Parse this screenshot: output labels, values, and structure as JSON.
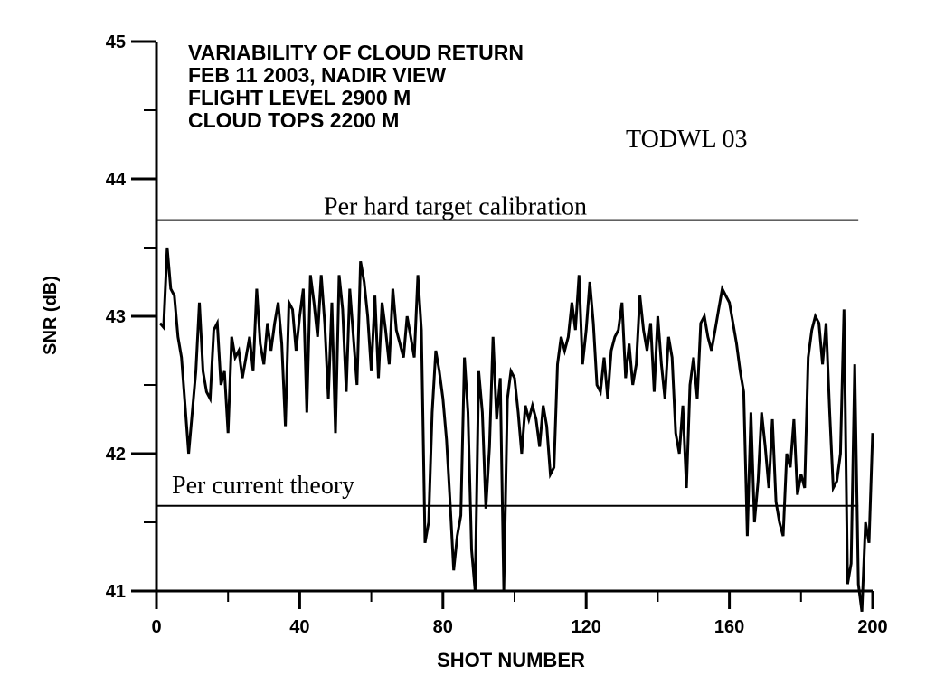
{
  "chart_data": {
    "type": "line",
    "title_lines": [
      "VARIABILITY OF CLOUD RETURN",
      "FEB 11 2003, NADIR VIEW",
      "FLIGHT LEVEL 2900 M",
      "CLOUD TOPS 2200 M"
    ],
    "watermark": "TODWL 03",
    "xlabel": "SHOT NUMBER",
    "ylabel": "SNR (dB)",
    "xlim": [
      0,
      200
    ],
    "ylim": [
      41,
      45
    ],
    "x_ticks": [
      "0",
      "40",
      "80",
      "120",
      "160",
      "200"
    ],
    "x_tick_values": [
      0,
      40,
      80,
      120,
      160,
      200
    ],
    "y_ticks": [
      "41",
      "42",
      "43",
      "44",
      "45"
    ],
    "y_tick_values": [
      41,
      42,
      43,
      44,
      45
    ],
    "reference_lines": [
      {
        "label": "Per hard target calibration",
        "y": 43.7,
        "x_range": [
          0,
          196
        ]
      },
      {
        "label": "Per current theory",
        "y": 41.62,
        "x_range": [
          0,
          196
        ]
      }
    ],
    "series": [
      {
        "color": "#000000",
        "x": [
          1,
          2,
          3,
          4,
          5,
          6,
          7,
          8,
          9,
          10,
          11,
          12,
          13,
          14,
          15,
          16,
          17,
          18,
          19,
          20,
          21,
          22,
          23,
          24,
          25,
          26,
          27,
          28,
          29,
          30,
          31,
          32,
          33,
          34,
          35,
          36,
          37,
          38,
          39,
          40,
          41,
          42,
          43,
          44,
          45,
          46,
          47,
          48,
          49,
          50,
          51,
          52,
          53,
          54,
          55,
          56,
          57,
          58,
          59,
          60,
          61,
          62,
          63,
          64,
          65,
          66,
          67,
          68,
          69,
          70,
          71,
          72,
          73,
          74,
          75,
          76,
          77,
          78,
          79,
          80,
          81,
          82,
          83,
          84,
          85,
          86,
          87,
          88,
          89,
          90,
          91,
          92,
          93,
          94,
          95,
          96,
          97,
          98,
          99,
          100,
          101,
          102,
          103,
          104,
          105,
          106,
          107,
          108,
          109,
          110,
          111,
          112,
          113,
          114,
          115,
          116,
          117,
          118,
          119,
          120,
          121,
          122,
          123,
          124,
          125,
          126,
          127,
          128,
          129,
          130,
          131,
          132,
          133,
          134,
          135,
          136,
          137,
          138,
          139,
          140,
          141,
          142,
          143,
          144,
          145,
          146,
          147,
          148,
          149,
          150,
          151,
          152,
          153,
          154,
          155,
          156,
          157,
          158,
          159,
          160,
          161,
          162,
          163,
          164,
          165,
          166,
          167,
          168,
          169,
          170,
          171,
          172,
          173,
          174,
          175,
          176,
          177,
          178,
          179,
          180,
          181,
          182,
          183,
          184,
          185,
          186,
          187,
          188,
          189,
          190,
          191,
          192,
          193,
          194,
          195,
          196,
          197,
          198,
          199,
          200
        ],
        "y": [
          42.95,
          42.92,
          43.5,
          43.2,
          43.15,
          42.85,
          42.7,
          42.35,
          42.0,
          42.3,
          42.6,
          43.1,
          42.6,
          42.45,
          42.4,
          42.9,
          42.95,
          42.5,
          42.6,
          42.15,
          42.85,
          42.7,
          42.75,
          42.55,
          42.7,
          42.85,
          42.6,
          43.2,
          42.8,
          42.65,
          42.95,
          42.75,
          42.95,
          43.1,
          42.8,
          42.2,
          43.1,
          43.05,
          42.75,
          43.0,
          43.2,
          42.3,
          43.3,
          43.1,
          42.85,
          43.3,
          42.95,
          42.4,
          43.1,
          42.15,
          43.3,
          43.05,
          42.45,
          43.2,
          42.85,
          42.5,
          43.4,
          43.25,
          43.0,
          42.6,
          43.15,
          42.55,
          43.1,
          42.9,
          42.65,
          43.2,
          42.9,
          42.8,
          42.7,
          43.0,
          42.85,
          42.7,
          43.3,
          42.9,
          41.35,
          41.5,
          42.3,
          42.75,
          42.6,
          42.4,
          42.1,
          41.65,
          41.15,
          41.4,
          41.55,
          42.7,
          42.3,
          41.3,
          41.0,
          42.6,
          42.3,
          41.6,
          42.05,
          42.85,
          42.25,
          42.55,
          41.0,
          42.4,
          42.6,
          42.55,
          42.3,
          42.0,
          42.35,
          42.25,
          42.35,
          42.25,
          42.05,
          42.35,
          42.2,
          41.85,
          41.9,
          42.65,
          42.85,
          42.75,
          42.85,
          43.1,
          42.9,
          43.3,
          42.65,
          42.9,
          43.25,
          42.95,
          42.5,
          42.45,
          42.7,
          42.4,
          42.75,
          42.85,
          42.9,
          43.1,
          42.55,
          42.8,
          42.5,
          42.65,
          43.15,
          42.9,
          42.75,
          42.95,
          42.45,
          43.0,
          42.65,
          42.4,
          42.85,
          42.7,
          42.15,
          42.0,
          42.35,
          41.75,
          42.5,
          42.7,
          42.4,
          42.95,
          43.0,
          42.85,
          42.75,
          42.9,
          43.05,
          43.2,
          43.15,
          43.1,
          42.95,
          42.8,
          42.6,
          42.45,
          41.4,
          42.3,
          41.5,
          41.8,
          42.3,
          42.05,
          41.75,
          42.25,
          41.65,
          41.5,
          41.4,
          42.0,
          41.9,
          42.25,
          41.7,
          41.85,
          41.75,
          42.7,
          42.9,
          43.0,
          42.95,
          42.65,
          42.95,
          42.3,
          41.75,
          41.8,
          42.0,
          43.05,
          41.05,
          41.2,
          42.65,
          41.05,
          40.85,
          41.5,
          41.35,
          42.15
        ]
      }
    ]
  }
}
